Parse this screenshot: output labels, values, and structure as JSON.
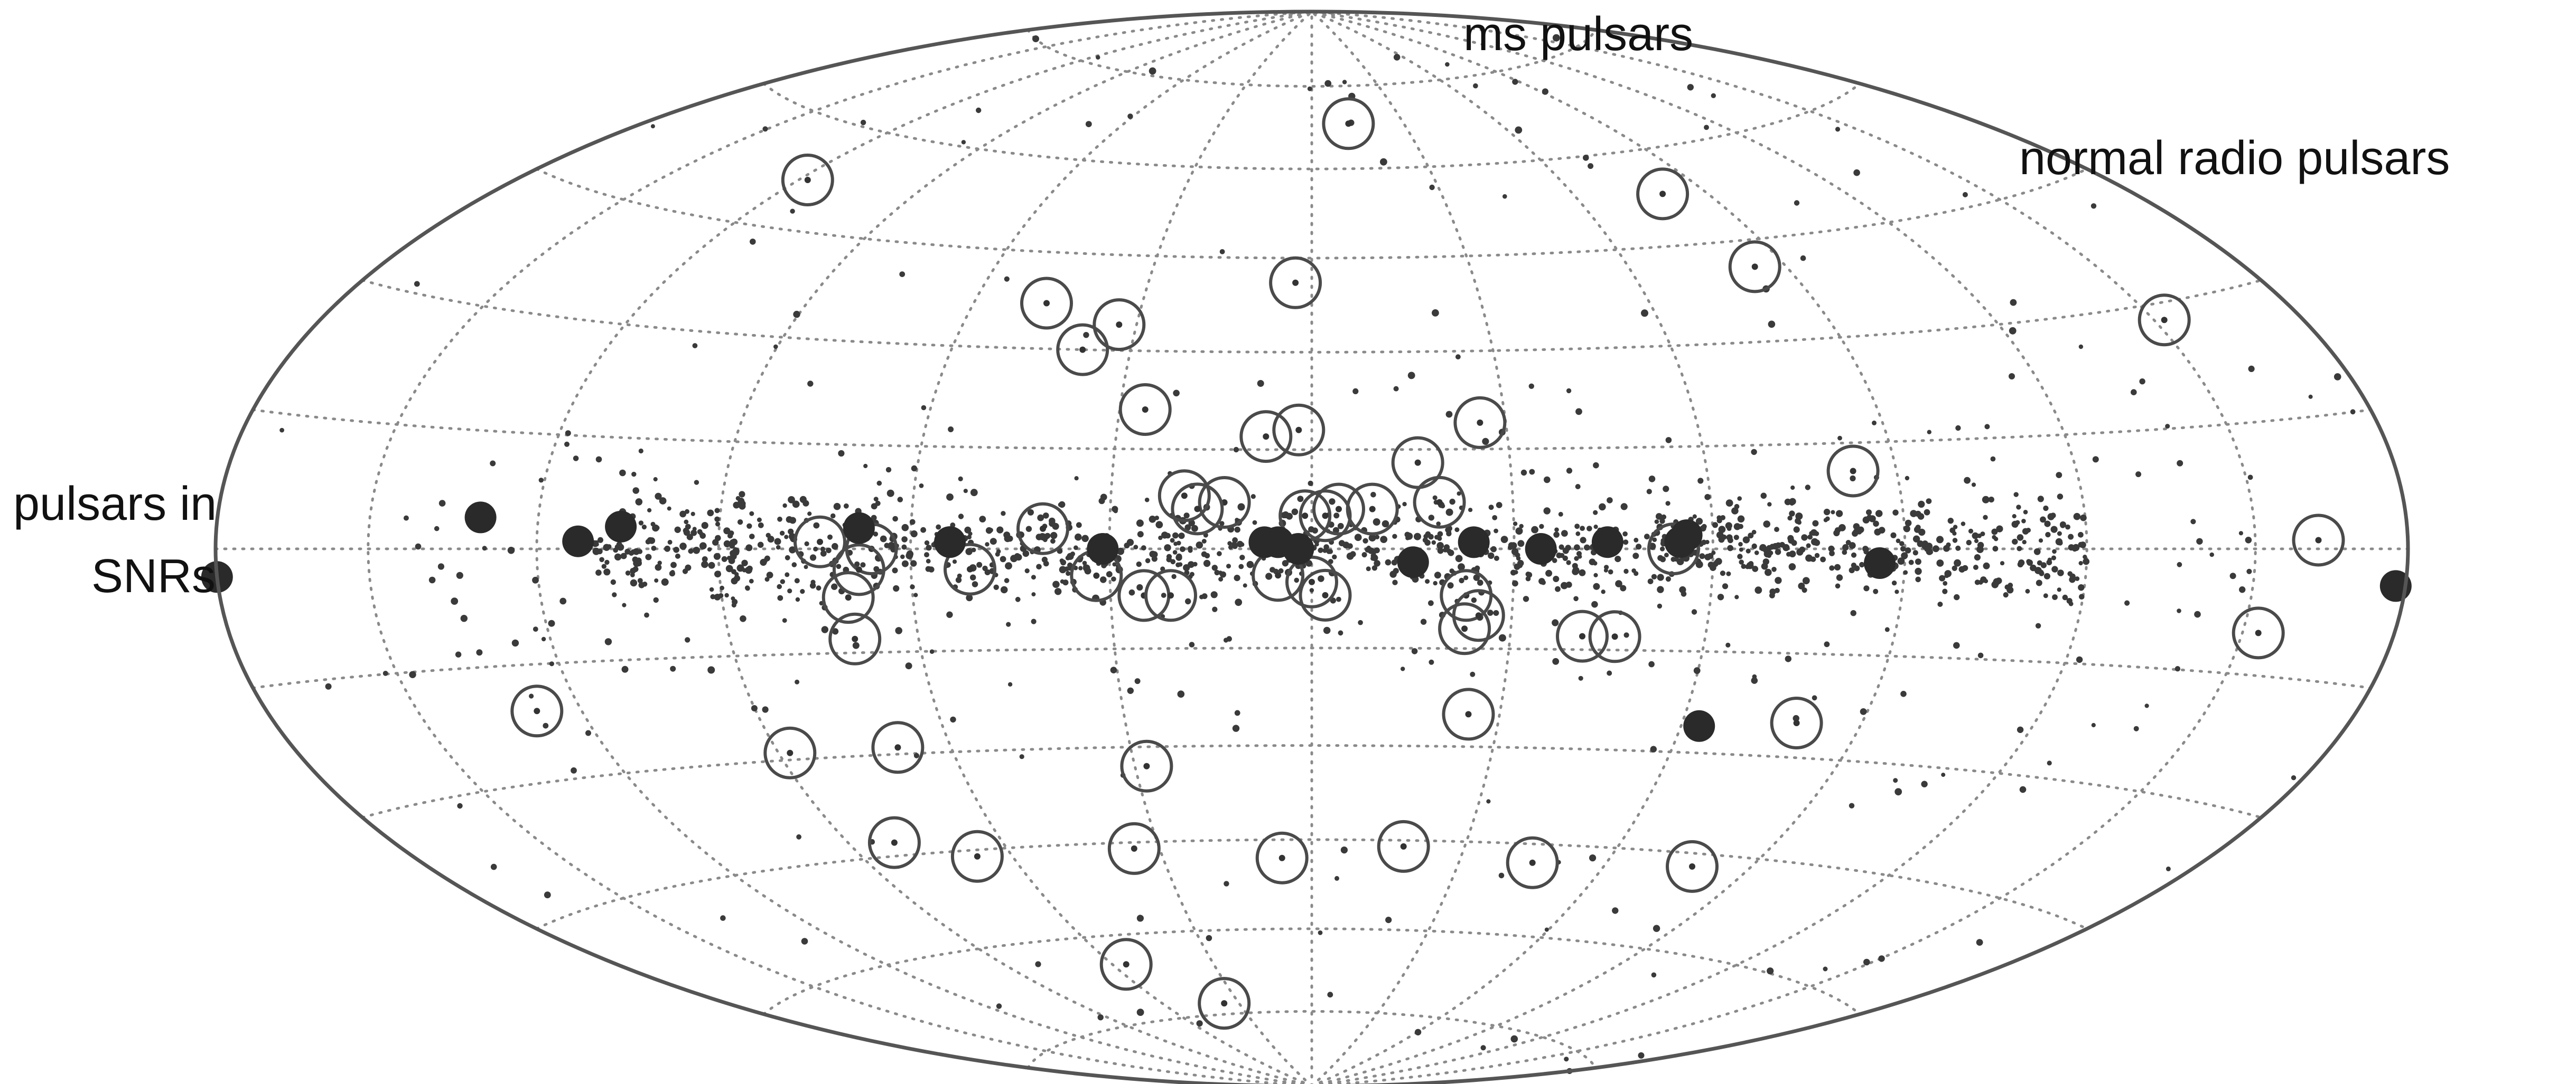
{
  "chart_data": {
    "type": "scatter",
    "projection": "Aitoff/Hammer all-sky (galactic coordinates)",
    "x_unit": "galactic longitude l (deg, 180 at left edge, 0 at centre, -180 at right edge)",
    "y_unit": "galactic latitude b (deg)",
    "xlim": [
      180,
      -180
    ],
    "ylim": [
      -90,
      90
    ],
    "grid": true,
    "annotations": {
      "ms": "ms pulsars",
      "normal": "normal radio pulsars",
      "snr_line1": "pulsars in",
      "snr_line2": "SNRs"
    },
    "series": [
      {
        "name": "ms pulsars",
        "marker": "open circle",
        "points": [
          {
            "l": -12,
            "b": 68
          },
          {
            "l": 118,
            "b": 52
          },
          {
            "l": -80,
            "b": 53
          },
          {
            "l": 3,
            "b": 41
          },
          {
            "l": -84,
            "b": 41
          },
          {
            "l": 47,
            "b": 37
          },
          {
            "l": 33,
            "b": 34
          },
          {
            "l": 38,
            "b": 30
          },
          {
            "l": 26,
            "b": 21
          },
          {
            "l": 2,
            "b": 18
          },
          {
            "l": -26,
            "b": 19
          },
          {
            "l": -152,
            "b": 28
          },
          {
            "l": -16,
            "b": 13
          },
          {
            "l": -83,
            "b": 11
          },
          {
            "l": 13,
            "b": 7
          },
          {
            "l": -19,
            "b": 7
          },
          {
            "l": 19,
            "b": 8
          },
          {
            "l": 17,
            "b": 6
          },
          {
            "l": -4,
            "b": 6
          },
          {
            "l": -9,
            "b": 6
          },
          {
            "l": 1,
            "b": 5
          },
          {
            "l": -2,
            "b": 5
          },
          {
            "l": 40,
            "b": 3
          },
          {
            "l": 74,
            "b": 1
          },
          {
            "l": 66,
            "b": 0
          },
          {
            "l": 68,
            "b": -3
          },
          {
            "l": 51,
            "b": -3
          },
          {
            "l": 32,
            "b": -4
          },
          {
            "l": 25,
            "b": -7
          },
          {
            "l": 21,
            "b": -7
          },
          {
            "l": 5,
            "b": -4
          },
          {
            "l": 0,
            "b": -5
          },
          {
            "l": -2,
            "b": -7
          },
          {
            "l": -23,
            "b": -7
          },
          {
            "l": -25,
            "b": -10
          },
          {
            "l": -23,
            "b": -12
          },
          {
            "l": -41,
            "b": -13
          },
          {
            "l": -46,
            "b": -13
          },
          {
            "l": -54,
            "b": 0
          },
          {
            "l": 70,
            "b": -13
          },
          {
            "l": 128,
            "b": -21
          },
          {
            "l": -162,
            "b": 1
          },
          {
            "l": -153,
            "b": -10
          },
          {
            "l": -25,
            "b": -25
          },
          {
            "l": -79,
            "b": -25
          },
          {
            "l": 69,
            "b": -29
          },
          {
            "l": 88,
            "b": -29
          },
          {
            "l": 28,
            "b": -33
          },
          {
            "l": 81,
            "b": -43
          },
          {
            "l": 67,
            "b": -46
          },
          {
            "l": 35,
            "b": -46
          },
          {
            "l": 6,
            "b": -48
          },
          {
            "l": -18,
            "b": -46
          },
          {
            "l": -45,
            "b": -48
          },
          {
            "l": -78,
            "b": -47
          },
          {
            "l": 56,
            "b": -65
          },
          {
            "l": 36,
            "b": -73
          },
          {
            "l": 70,
            "b": -7
          },
          {
            "l": 7,
            "b": 17
          }
        ]
      },
      {
        "name": "pulsars in SNRs",
        "marker": "filled circle",
        "points": [
          {
            "l": 180,
            "b": -3
          },
          {
            "l": 130,
            "b": 4
          },
          {
            "l": 113,
            "b": 1
          },
          {
            "l": 106,
            "b": 3
          },
          {
            "l": 68,
            "b": 3
          },
          {
            "l": 54,
            "b": 1
          },
          {
            "l": 31,
            "b": 0
          },
          {
            "l": 7,
            "b": 1
          },
          {
            "l": 5,
            "b": 1
          },
          {
            "l": 2,
            "b": 0
          },
          {
            "l": -15,
            "b": -2
          },
          {
            "l": -24,
            "b": 1
          },
          {
            "l": -34,
            "b": 0
          },
          {
            "l": -44,
            "b": 1
          },
          {
            "l": -55,
            "b": 1
          },
          {
            "l": -56,
            "b": 2
          },
          {
            "l": -86,
            "b": -2
          },
          {
            "l": -178,
            "b": -4
          },
          {
            "l": -63,
            "b": -26
          }
        ]
      },
      {
        "name": "normal radio pulsars",
        "marker": "small dot",
        "distribution": "concentrated along galactic plane (|b| < 10) across -120 < l < 110, sparse elsewhere",
        "count_approx": 1500
      }
    ]
  }
}
